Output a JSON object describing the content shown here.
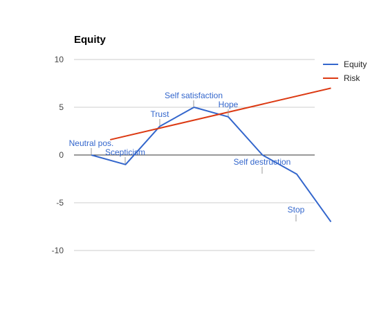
{
  "chart_data": {
    "type": "line",
    "title": "Equity",
    "xlabel": "",
    "ylabel": "",
    "ylim": [
      -10,
      10
    ],
    "yticks": [
      10,
      5,
      0,
      -5,
      -10
    ],
    "ytick_labels": [
      "10",
      "5",
      "0",
      "-5",
      "-10"
    ],
    "grid": true,
    "legend_position": "right",
    "x": [
      0,
      1,
      2,
      3,
      4,
      5,
      6,
      7
    ],
    "series": [
      {
        "name": "Equity",
        "color": "#3366cc",
        "x": [
          0,
          1,
          2,
          3,
          4,
          5,
          6,
          7
        ],
        "values": [
          0,
          -1,
          3,
          5,
          4,
          0,
          -2,
          -7
        ]
      },
      {
        "name": "Risk",
        "color": "#dc3912",
        "x": [
          0.55,
          7
        ],
        "values": [
          1.6,
          7
        ]
      }
    ],
    "annotations": [
      {
        "text": "Neutral pos.",
        "x": 0,
        "y": 0
      },
      {
        "text": "Scepticism",
        "x": 1,
        "y": -1
      },
      {
        "text": "Trust",
        "x": 2,
        "y": 3
      },
      {
        "text": "Self satisfaction",
        "x": 3,
        "y": 5
      },
      {
        "text": "Hope",
        "x": 4,
        "y": 4
      },
      {
        "text": "Self destruction",
        "x": 5,
        "y": 0
      },
      {
        "text": "Stop",
        "x": 6,
        "y": -2
      }
    ]
  }
}
